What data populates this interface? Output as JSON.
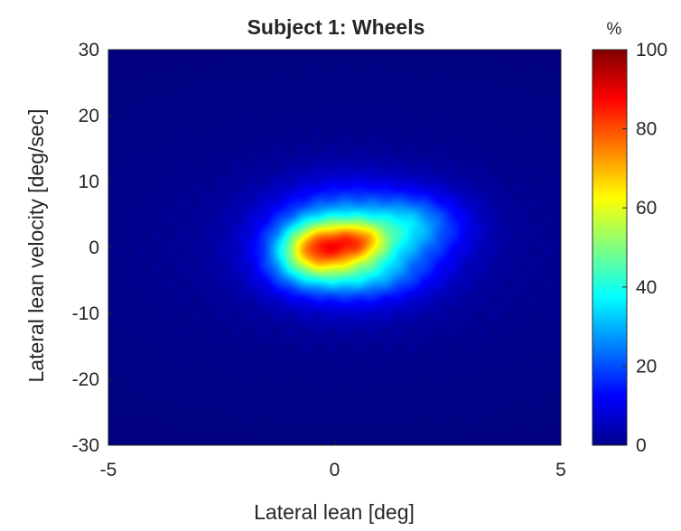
{
  "chart_data": {
    "type": "heatmap",
    "title": "Subject 1: Wheels",
    "xlabel": "Lateral lean [deg]",
    "ylabel": "Lateral lean velocity [deg/sec]",
    "xlim": [
      -5,
      5
    ],
    "ylim": [
      -30,
      30
    ],
    "xticks": [
      "-5",
      "0",
      "5"
    ],
    "yticks": [
      "-30",
      "-20",
      "-10",
      "0",
      "10",
      "20",
      "30"
    ],
    "colorbar": {
      "label": "%",
      "range": [
        0,
        100
      ],
      "ticks": [
        "0",
        "20",
        "40",
        "60",
        "80",
        "100"
      ],
      "colormap": "jet"
    },
    "grid": false,
    "blobs": [
      {
        "x": 0.35,
        "y": 0.5,
        "sx": 1.15,
        "sy": 5.2,
        "amp": 42
      },
      {
        "x": -0.3,
        "y": 0.0,
        "sx": 0.55,
        "sy": 2.6,
        "amp": 40
      },
      {
        "x": 0.6,
        "y": 1.0,
        "sx": 0.4,
        "sy": 2.0,
        "amp": 24
      },
      {
        "x": 2.2,
        "y": 3.5,
        "sx": 0.7,
        "sy": 3.5,
        "amp": 9
      },
      {
        "x": 1.6,
        "y": 4.0,
        "sx": 0.5,
        "sy": 2.5,
        "amp": 8
      },
      {
        "x": -0.8,
        "y": -2.0,
        "sx": 0.5,
        "sy": 3.0,
        "amp": 10
      },
      {
        "x": 0.4,
        "y": -4.5,
        "sx": 1.0,
        "sy": 2.0,
        "amp": 8
      },
      {
        "x": 0.5,
        "y": 0.0,
        "sx": 4.0,
        "sy": 13.0,
        "amp": 3
      }
    ]
  }
}
